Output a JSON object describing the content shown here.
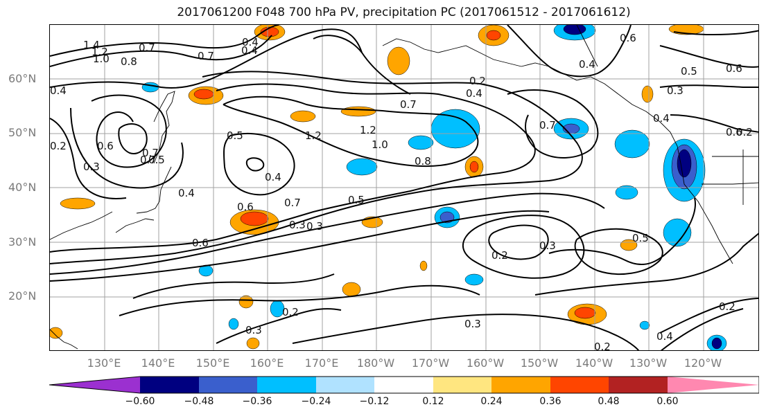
{
  "title": "2017061200 F048 700 hPa PV, precipitation PC (2017061512 - 2017061612)",
  "lat_labels": [
    "60°N",
    "50°N",
    "40°N",
    "30°N",
    "20°N"
  ],
  "lon_labels": [
    "130°E",
    "140°E",
    "150°E",
    "160°E",
    "170°E",
    "180°W",
    "170°W",
    "160°W",
    "150°W",
    "140°W",
    "130°W",
    "120°W"
  ],
  "colorbar": {
    "ticks": [
      "−0.60",
      "−0.48",
      "−0.36",
      "−0.24",
      "−0.12",
      "0.12",
      "0.24",
      "0.36",
      "0.48",
      "0.60"
    ],
    "colors": [
      "#9b30d0",
      "#000080",
      "#3a5fcd",
      "#00bfff",
      "#b0e2ff",
      "#ffffff",
      "#ffe680",
      "#ffa500",
      "#ff4500",
      "#b22222",
      "#ff88b0"
    ]
  },
  "contour_labels": [
    "1.4",
    "1.2",
    "1.0",
    "0.8",
    "0.7",
    "0.4",
    "0.7",
    "0.4",
    "0.6",
    "0.5",
    "0.3",
    "0.4",
    "0.7",
    "0.7",
    "0.4",
    "0.6",
    "0.3",
    "0.2",
    "0.6",
    "0.7",
    "0.5",
    "0.3",
    "0.4",
    "0.4",
    "0.6",
    "0.5",
    "0.7",
    "0.2",
    "1.2",
    "1.2",
    "1.0",
    "0.8",
    "0.7",
    "0.5",
    "0.4",
    "0.3",
    "0.6",
    "0.6",
    "0.4",
    "0.3",
    "0.2",
    "0.3",
    "0.2",
    "0.2",
    "0.3",
    "0.2",
    "0.5",
    "0.4",
    "0.2"
  ],
  "colors": {
    "contour": "#000000",
    "grid": "#a0a0a0",
    "coast": "#000000",
    "axis_label": "#7a7a7a"
  }
}
